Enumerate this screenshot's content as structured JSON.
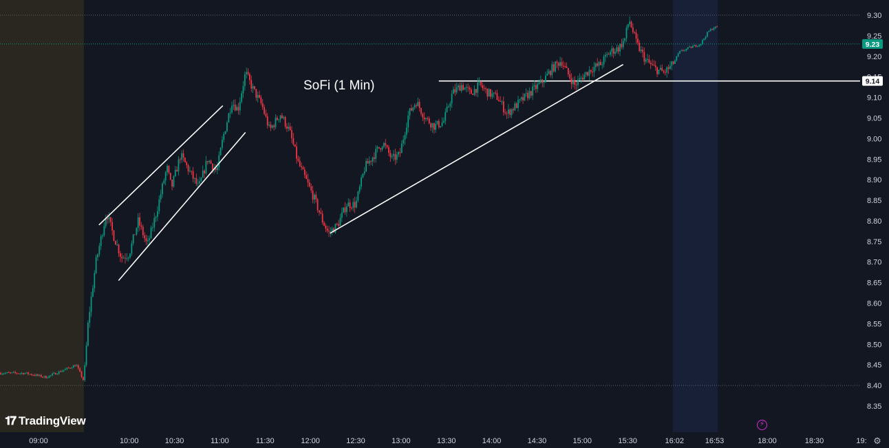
{
  "watermark": {
    "brand": "TradingView"
  },
  "chart_data": {
    "type": "candlestick",
    "title": "SoFi (1 Min)",
    "x_ticks": [
      "09:00",
      "10:00",
      "10:30",
      "11:00",
      "11:30",
      "12:00",
      "12:30",
      "13:00",
      "13:30",
      "14:00",
      "14:30",
      "15:00",
      "15:30",
      "16:02",
      "16:53",
      "18:00",
      "18:30",
      "19:"
    ],
    "y_ticks": [
      "9.30",
      "9.25",
      "9.20",
      "9.15",
      "9.10",
      "9.05",
      "9.00",
      "8.95",
      "8.90",
      "8.85",
      "8.80",
      "8.75",
      "8.70",
      "8.65",
      "8.60",
      "8.55",
      "8.50",
      "8.45",
      "8.40",
      "8.35"
    ],
    "ylim": [
      8.325,
      9.35
    ],
    "price_badges": [
      {
        "label": "9.23",
        "value": 9.23,
        "color": "#089981"
      },
      {
        "label": "9.14",
        "value": 9.14,
        "color": "#ffffff"
      }
    ],
    "horizontal_levels": [
      {
        "value": 9.3,
        "style": "dotted"
      },
      {
        "value": 9.23,
        "style": "dotted",
        "color": "#089981"
      },
      {
        "value": 9.14,
        "style": "solid",
        "from_time": "13:25"
      },
      {
        "value": 8.4,
        "style": "dotted"
      }
    ],
    "trendlines": [
      {
        "from": [
          "09:40",
          8.79
        ],
        "to": [
          "11:02",
          9.08
        ]
      },
      {
        "from": [
          "09:53",
          8.655
        ],
        "to": [
          "11:17",
          9.015
        ]
      },
      {
        "from": [
          "12:13",
          8.77
        ],
        "to": [
          "15:27",
          9.18
        ]
      }
    ],
    "sessions": [
      {
        "name": "pre-market",
        "from": "08:05",
        "to": "09:30",
        "color": "#2a2620"
      },
      {
        "name": "after-hours",
        "from": "16:00",
        "to": "16:57",
        "color": "#172036"
      }
    ],
    "up_color": "#089981",
    "down_color": "#f23645",
    "price_path": [
      [
        "08:05",
        8.43
      ],
      [
        "08:40",
        8.43
      ],
      [
        "09:05",
        8.42
      ],
      [
        "09:25",
        8.45
      ],
      [
        "09:30",
        8.41
      ],
      [
        "09:33",
        8.56
      ],
      [
        "09:38",
        8.7
      ],
      [
        "09:45",
        8.82
      ],
      [
        "09:50",
        8.76
      ],
      [
        "09:55",
        8.71
      ],
      [
        "10:00",
        8.72
      ],
      [
        "10:06",
        8.8
      ],
      [
        "10:12",
        8.74
      ],
      [
        "10:18",
        8.82
      ],
      [
        "10:25",
        8.93
      ],
      [
        "10:28",
        8.88
      ],
      [
        "10:34",
        8.96
      ],
      [
        "10:40",
        8.92
      ],
      [
        "10:46",
        8.88
      ],
      [
        "10:52",
        8.95
      ],
      [
        "10:58",
        8.92
      ],
      [
        "11:02",
        9.0
      ],
      [
        "11:08",
        9.09
      ],
      [
        "11:12",
        9.07
      ],
      [
        "11:17",
        9.16
      ],
      [
        "11:22",
        9.12
      ],
      [
        "11:28",
        9.08
      ],
      [
        "11:33",
        9.02
      ],
      [
        "11:40",
        9.06
      ],
      [
        "11:46",
        9.02
      ],
      [
        "11:52",
        8.94
      ],
      [
        "11:57",
        8.9
      ],
      [
        "12:03",
        8.85
      ],
      [
        "12:08",
        8.8
      ],
      [
        "12:12",
        8.77
      ],
      [
        "12:18",
        8.79
      ],
      [
        "12:24",
        8.84
      ],
      [
        "12:30",
        8.84
      ],
      [
        "12:36",
        8.93
      ],
      [
        "12:42",
        8.96
      ],
      [
        "12:48",
        8.99
      ],
      [
        "12:54",
        8.95
      ],
      [
        "12:59",
        8.96
      ],
      [
        "13:05",
        9.06
      ],
      [
        "13:10",
        9.09
      ],
      [
        "13:16",
        9.05
      ],
      [
        "13:22",
        9.03
      ],
      [
        "13:28",
        9.04
      ],
      [
        "13:34",
        9.11
      ],
      [
        "13:40",
        9.13
      ],
      [
        "13:46",
        9.11
      ],
      [
        "13:52",
        9.13
      ],
      [
        "13:58",
        9.11
      ],
      [
        "14:04",
        9.1
      ],
      [
        "14:10",
        9.06
      ],
      [
        "14:16",
        9.08
      ],
      [
        "14:22",
        9.1
      ],
      [
        "14:28",
        9.12
      ],
      [
        "14:34",
        9.14
      ],
      [
        "14:40",
        9.17
      ],
      [
        "14:46",
        9.19
      ],
      [
        "14:50",
        9.16
      ],
      [
        "14:55",
        9.13
      ],
      [
        "15:00",
        9.15
      ],
      [
        "15:06",
        9.17
      ],
      [
        "15:12",
        9.18
      ],
      [
        "15:18",
        9.21
      ],
      [
        "15:24",
        9.22
      ],
      [
        "15:28",
        9.24
      ],
      [
        "15:31",
        9.29
      ],
      [
        "15:36",
        9.23
      ],
      [
        "15:42",
        9.19
      ],
      [
        "15:48",
        9.17
      ],
      [
        "15:54",
        9.16
      ],
      [
        "16:00",
        9.18
      ],
      [
        "16:08",
        9.21
      ],
      [
        "16:20",
        9.22
      ],
      [
        "16:35",
        9.23
      ],
      [
        "16:45",
        9.26
      ],
      [
        "16:52",
        9.27
      ],
      [
        "16:58",
        9.27
      ]
    ]
  }
}
